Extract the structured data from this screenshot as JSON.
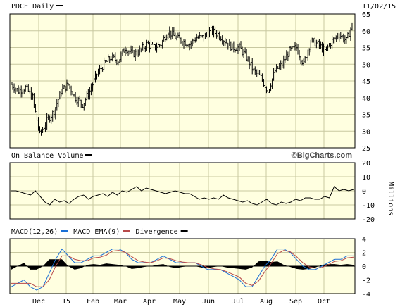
{
  "chart_data": [
    {
      "type": "ohlc",
      "title": "PDCE Daily",
      "date": "11/02/15",
      "ylim": [
        25,
        65
      ],
      "yticks": [
        25,
        30,
        35,
        40,
        45,
        50,
        55,
        60,
        65
      ],
      "grid": true,
      "close_by_month": [
        {
          "month": "Nov",
          "values": [
            44,
            42,
            43,
            40
          ]
        },
        {
          "month": "Dec",
          "values": [
            29,
            33,
            36,
            42
          ]
        },
        {
          "month": "15",
          "values": [
            44,
            40,
            38,
            42
          ]
        },
        {
          "month": "Feb",
          "values": [
            47,
            50,
            52,
            51
          ]
        },
        {
          "month": "Mar",
          "values": [
            55,
            53,
            54,
            56
          ]
        },
        {
          "month": "Apr",
          "values": [
            55,
            56,
            60,
            58
          ]
        },
        {
          "month": "May",
          "values": [
            57,
            56,
            58,
            58
          ]
        },
        {
          "month": "Jun",
          "values": [
            60,
            59,
            57,
            55
          ]
        },
        {
          "month": "Jul",
          "values": [
            55,
            52,
            48,
            46
          ]
        },
        {
          "month": "Aug",
          "values": [
            42,
            48,
            50,
            54
          ]
        },
        {
          "month": "Sep",
          "values": [
            55,
            50,
            57,
            56
          ]
        },
        {
          "month": "Oct",
          "values": [
            54,
            57,
            59,
            57
          ]
        },
        {
          "month": "Nov",
          "values": [
            63
          ]
        }
      ]
    },
    {
      "type": "line",
      "title": "On Balance Volume",
      "unit_label": "Millions",
      "ylim": [
        -20,
        20
      ],
      "yticks": [
        -20,
        -10,
        0,
        10,
        20
      ],
      "values": [
        0,
        0,
        -1,
        -2,
        -3,
        0,
        -4,
        -8,
        -10,
        -6,
        -8,
        -7,
        -9,
        -6,
        -4,
        -3,
        -6,
        -4,
        -3,
        -2,
        -4,
        -1,
        -3,
        0,
        -1,
        1,
        3,
        0,
        2,
        1,
        0,
        -1,
        -2,
        -1,
        0,
        -1,
        -2,
        -2,
        -4,
        -6,
        -5,
        -6,
        -5,
        -6,
        -3,
        -5,
        -6,
        -7,
        -8,
        -7,
        -9,
        -10,
        -8,
        -6,
        -9,
        -10,
        -8,
        -9,
        -8,
        -6,
        -7,
        -5,
        -5,
        -6,
        -6,
        -4,
        -5,
        3,
        0,
        1,
        0,
        1
      ]
    },
    {
      "type": "line",
      "title": "MACD",
      "legend": [
        {
          "name": "MACD(12,26)",
          "color": "#1a6fd6"
        },
        {
          "name": "MACD EMA(9)",
          "color": "#b84a4a"
        },
        {
          "name": "Divergence",
          "color": "#000000"
        }
      ],
      "ylim": [
        -4,
        4
      ],
      "yticks": [
        -4,
        -2,
        0,
        2,
        4
      ],
      "series": [
        {
          "name": "MACD(12,26)",
          "values": [
            -3,
            -2.5,
            -2,
            -3,
            -3.5,
            -3,
            -1,
            1,
            2.5,
            1.5,
            0.5,
            0.5,
            1,
            1.5,
            1.5,
            2,
            2.5,
            2.5,
            2,
            1,
            0.5,
            0.5,
            0.5,
            1,
            1.5,
            1,
            0.5,
            0.5,
            0.5,
            0.5,
            0,
            -0.5,
            -0.5,
            -0.5,
            -1,
            -1.5,
            -2,
            -3,
            -3,
            -1.5,
            0,
            1,
            2.5,
            2.5,
            2,
            1,
            0,
            -0.5,
            -0.5,
            0,
            0.5,
            1,
            1,
            1.5,
            1.5
          ]
        },
        {
          "name": "MACD EMA(9)",
          "values": [
            -2.5,
            -2.5,
            -2.5,
            -2.5,
            -3,
            -3,
            -2,
            0,
            1.5,
            1.5,
            1,
            0.8,
            0.8,
            1.2,
            1.3,
            1.6,
            2.2,
            2.3,
            2,
            1.4,
            0.8,
            0.6,
            0.5,
            0.8,
            1.2,
            1.1,
            0.8,
            0.6,
            0.5,
            0.5,
            0.2,
            -0.2,
            -0.4,
            -0.5,
            -0.8,
            -1.2,
            -1.6,
            -2.5,
            -2.8,
            -2.2,
            -0.8,
            0.4,
            1.8,
            2.3,
            2.1,
            1.4,
            0.5,
            -0.1,
            -0.3,
            -0.2,
            0.2,
            0.7,
            0.8,
            1.2,
            1.3
          ]
        }
      ],
      "divergence": [
        -0.5,
        0,
        0.5,
        -0.5,
        -0.5,
        0,
        1,
        1,
        1,
        0,
        -0.5,
        -0.3,
        0.2,
        0.3,
        0.2,
        0.4,
        0.3,
        0.2,
        0,
        -0.4,
        -0.3,
        -0.1,
        0,
        0.2,
        0.3,
        -0.1,
        -0.3,
        -0.1,
        0,
        0,
        -0.2,
        -0.3,
        -0.1,
        0,
        -0.2,
        -0.3,
        -0.4,
        -0.5,
        -0.2,
        0.7,
        0.8,
        0.6,
        0.7,
        0.2,
        -0.1,
        -0.4,
        -0.5,
        -0.4,
        -0.2,
        0.2,
        0.3,
        0.3,
        0.2,
        0.3,
        0.2
      ]
    }
  ],
  "x_axis": {
    "labels": [
      "Dec",
      "15",
      "Feb",
      "Mar",
      "Apr",
      "May",
      "Jun",
      "Jul",
      "Aug",
      "Sep",
      "Oct"
    ]
  },
  "brand": "©BigCharts.com",
  "colors": {
    "panel_bg": "#ffffe0",
    "grid": "#c8c8a0",
    "macd": "#1a6fd6",
    "ema": "#b84a4a",
    "divergence": "#000000"
  }
}
